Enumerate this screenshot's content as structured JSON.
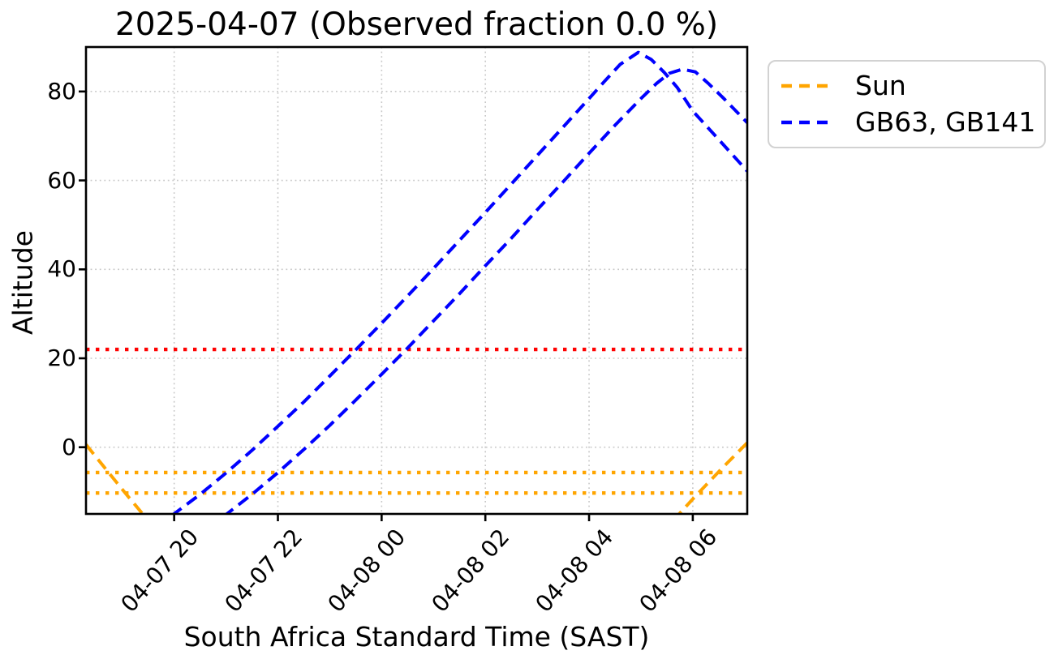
{
  "title": "2025-04-07 (Observed fraction 0.0 %)",
  "legend": {
    "items": [
      {
        "label": "Sun",
        "color": "#FFA500"
      },
      {
        "label": "GB63, GB141",
        "color": "#0000FF"
      }
    ]
  },
  "chart_data": {
    "type": "line",
    "title": "2025-04-07 (Observed fraction 0.0 %)",
    "xlabel": "South Africa Standard Time (SAST)",
    "ylabel": "Altitude",
    "x_unit": "hours since 2025-04-07 00:00 SAST",
    "xlim": [
      18.3,
      31.05
    ],
    "ylim": [
      -15,
      90
    ],
    "grid": true,
    "grid_color": "#c7c7c7",
    "y_ticks": [
      {
        "value": 0,
        "label": "0"
      },
      {
        "value": 20,
        "label": "20"
      },
      {
        "value": 40,
        "label": "40"
      },
      {
        "value": 60,
        "label": "60"
      },
      {
        "value": 80,
        "label": "80"
      }
    ],
    "x_ticks": [
      {
        "hour": 20,
        "label": "04-07 20"
      },
      {
        "hour": 22,
        "label": "04-07 22"
      },
      {
        "hour": 24,
        "label": "04-08 00"
      },
      {
        "hour": 26,
        "label": "04-08 02"
      },
      {
        "hour": 28,
        "label": "04-08 04"
      },
      {
        "hour": 30,
        "label": "04-08 06"
      }
    ],
    "hlines": [
      {
        "name": "elevation-limit-line",
        "y": 22,
        "color": "#FF0000",
        "style": "dotted"
      },
      {
        "name": "sun-twilight-line-upper",
        "y": -5.7,
        "color": "#FFA500",
        "style": "dotted"
      },
      {
        "name": "sun-twilight-line-lower",
        "y": -10.3,
        "color": "#FFA500",
        "style": "dotted"
      }
    ],
    "legend_position": "upper right, outside axes",
    "series": [
      {
        "name": "sun-evening",
        "legend": "Sun",
        "color": "#FFA500",
        "style": "dashed",
        "points": [
          [
            18.3,
            0.6
          ],
          [
            18.7,
            -5.2
          ],
          [
            19.1,
            -10.9
          ],
          [
            19.5,
            -16.5
          ]
        ]
      },
      {
        "name": "sun-morning",
        "legend": "Sun",
        "color": "#FFA500",
        "style": "dashed",
        "points": [
          [
            29.62,
            -16.5
          ],
          [
            30.05,
            -11.0
          ],
          [
            30.55,
            -4.9
          ],
          [
            31.05,
            1.0
          ]
        ]
      },
      {
        "name": "GB63",
        "legend": "GB63, GB141",
        "color": "#0000FF",
        "style": "dashed",
        "points": [
          [
            19.95,
            -15.4
          ],
          [
            20.5,
            -10.6
          ],
          [
            21.0,
            -5.8
          ],
          [
            21.5,
            -0.7
          ],
          [
            22.0,
            4.7
          ],
          [
            22.5,
            10.2
          ],
          [
            23.0,
            16.0
          ],
          [
            23.5,
            21.9
          ],
          [
            24.0,
            27.9
          ],
          [
            24.5,
            34.0
          ],
          [
            25.0,
            40.2
          ],
          [
            25.5,
            46.5
          ],
          [
            26.0,
            52.8
          ],
          [
            26.5,
            59.2
          ],
          [
            27.0,
            65.6
          ],
          [
            27.5,
            72.0
          ],
          [
            28.0,
            78.4
          ],
          [
            28.3,
            82.3
          ],
          [
            28.6,
            86.1
          ],
          [
            28.95,
            88.8
          ],
          [
            29.2,
            87.2
          ],
          [
            29.45,
            84.3
          ],
          [
            29.7,
            80.9
          ],
          [
            30.0,
            75.6
          ],
          [
            30.5,
            69.2
          ],
          [
            31.05,
            62.1
          ]
        ]
      },
      {
        "name": "GB141",
        "legend": "GB63, GB141",
        "color": "#0000FF",
        "style": "dashed",
        "points": [
          [
            20.95,
            -15.6
          ],
          [
            21.5,
            -10.6
          ],
          [
            22.0,
            -5.7
          ],
          [
            22.5,
            -0.5
          ],
          [
            23.0,
            4.9
          ],
          [
            23.5,
            10.6
          ],
          [
            24.0,
            16.4
          ],
          [
            24.5,
            22.3
          ],
          [
            25.0,
            28.4
          ],
          [
            25.5,
            34.5
          ],
          [
            26.0,
            40.8
          ],
          [
            26.5,
            47.0
          ],
          [
            27.0,
            53.4
          ],
          [
            27.5,
            59.7
          ],
          [
            28.0,
            66.1
          ],
          [
            28.5,
            72.4
          ],
          [
            29.0,
            78.4
          ],
          [
            29.3,
            81.8
          ],
          [
            29.55,
            84.1
          ],
          [
            29.8,
            85.0
          ],
          [
            30.05,
            84.4
          ],
          [
            30.3,
            81.8
          ],
          [
            30.6,
            78.4
          ],
          [
            31.05,
            73.0
          ]
        ]
      }
    ]
  }
}
